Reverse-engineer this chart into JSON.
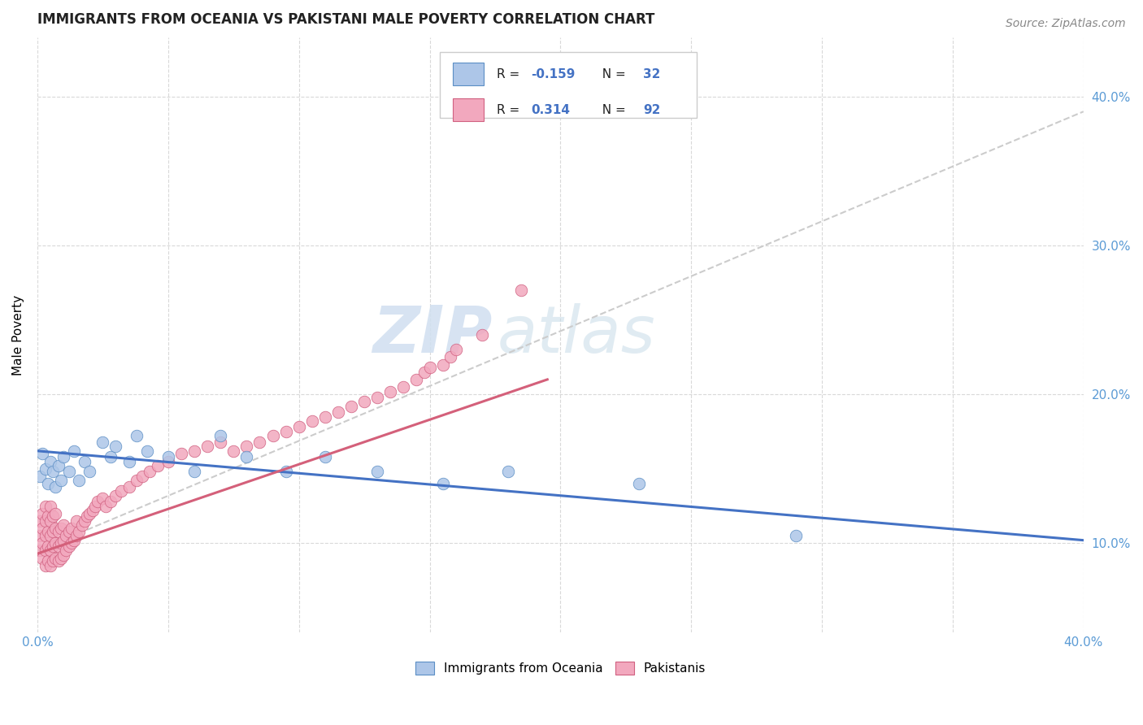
{
  "title": "IMMIGRANTS FROM OCEANIA VS PAKISTANI MALE POVERTY CORRELATION CHART",
  "source": "Source: ZipAtlas.com",
  "ylabel": "Male Poverty",
  "xlim": [
    0.0,
    0.4
  ],
  "ylim": [
    0.04,
    0.44
  ],
  "ytick_right_labels": [
    "10.0%",
    "20.0%",
    "30.0%",
    "40.0%"
  ],
  "ytick_right_vals": [
    0.1,
    0.2,
    0.3,
    0.4
  ],
  "color_oceania": "#adc6e8",
  "color_oceania_edge": "#5b8ec4",
  "color_pakistani": "#f2a8be",
  "color_pakistani_edge": "#d06080",
  "color_oceania_line": "#4472c4",
  "color_pakistani_line": "#d4607a",
  "color_trendline_gray": "#cccccc",
  "watermark_zip": "ZIP",
  "watermark_atlas": "atlas",
  "background_color": "#ffffff",
  "grid_color": "#d0d0d0",
  "title_fontsize": 12,
  "oceania_scatter_x": [
    0.001,
    0.002,
    0.003,
    0.004,
    0.005,
    0.006,
    0.007,
    0.008,
    0.009,
    0.01,
    0.012,
    0.014,
    0.016,
    0.018,
    0.02,
    0.025,
    0.028,
    0.03,
    0.035,
    0.038,
    0.042,
    0.05,
    0.06,
    0.07,
    0.08,
    0.095,
    0.11,
    0.13,
    0.155,
    0.18,
    0.23,
    0.29
  ],
  "oceania_scatter_y": [
    0.145,
    0.16,
    0.15,
    0.14,
    0.155,
    0.148,
    0.138,
    0.152,
    0.142,
    0.158,
    0.148,
    0.162,
    0.142,
    0.155,
    0.148,
    0.168,
    0.158,
    0.165,
    0.155,
    0.172,
    0.162,
    0.158,
    0.148,
    0.172,
    0.158,
    0.148,
    0.158,
    0.148,
    0.14,
    0.148,
    0.14,
    0.105
  ],
  "pakistani_scatter_x": [
    0.001,
    0.001,
    0.001,
    0.002,
    0.002,
    0.002,
    0.002,
    0.003,
    0.003,
    0.003,
    0.003,
    0.003,
    0.004,
    0.004,
    0.004,
    0.004,
    0.005,
    0.005,
    0.005,
    0.005,
    0.005,
    0.006,
    0.006,
    0.006,
    0.006,
    0.007,
    0.007,
    0.007,
    0.007,
    0.008,
    0.008,
    0.008,
    0.009,
    0.009,
    0.009,
    0.01,
    0.01,
    0.01,
    0.011,
    0.011,
    0.012,
    0.012,
    0.013,
    0.013,
    0.014,
    0.015,
    0.015,
    0.016,
    0.017,
    0.018,
    0.019,
    0.02,
    0.021,
    0.022,
    0.023,
    0.025,
    0.026,
    0.028,
    0.03,
    0.032,
    0.035,
    0.038,
    0.04,
    0.043,
    0.046,
    0.05,
    0.055,
    0.06,
    0.065,
    0.07,
    0.075,
    0.08,
    0.085,
    0.09,
    0.095,
    0.1,
    0.105,
    0.11,
    0.115,
    0.12,
    0.125,
    0.13,
    0.135,
    0.14,
    0.145,
    0.148,
    0.15,
    0.155,
    0.158,
    0.16,
    0.17,
    0.185
  ],
  "pakistani_scatter_y": [
    0.095,
    0.105,
    0.115,
    0.09,
    0.1,
    0.11,
    0.12,
    0.085,
    0.095,
    0.105,
    0.115,
    0.125,
    0.088,
    0.098,
    0.108,
    0.118,
    0.085,
    0.095,
    0.105,
    0.115,
    0.125,
    0.088,
    0.098,
    0.108,
    0.118,
    0.09,
    0.1,
    0.11,
    0.12,
    0.088,
    0.098,
    0.108,
    0.09,
    0.1,
    0.11,
    0.092,
    0.102,
    0.112,
    0.095,
    0.105,
    0.098,
    0.108,
    0.1,
    0.11,
    0.102,
    0.105,
    0.115,
    0.108,
    0.112,
    0.115,
    0.118,
    0.12,
    0.122,
    0.125,
    0.128,
    0.13,
    0.125,
    0.128,
    0.132,
    0.135,
    0.138,
    0.142,
    0.145,
    0.148,
    0.152,
    0.155,
    0.16,
    0.162,
    0.165,
    0.168,
    0.162,
    0.165,
    0.168,
    0.172,
    0.175,
    0.178,
    0.182,
    0.185,
    0.188,
    0.192,
    0.195,
    0.198,
    0.202,
    0.205,
    0.21,
    0.215,
    0.218,
    0.22,
    0.225,
    0.23,
    0.24,
    0.27
  ],
  "blue_line_x": [
    0.0,
    0.4
  ],
  "blue_line_y": [
    0.162,
    0.102
  ],
  "pink_line_x": [
    0.0,
    0.195
  ],
  "pink_line_y": [
    0.093,
    0.21
  ],
  "gray_line_x": [
    0.0,
    0.4
  ],
  "gray_line_y": [
    0.095,
    0.39
  ]
}
